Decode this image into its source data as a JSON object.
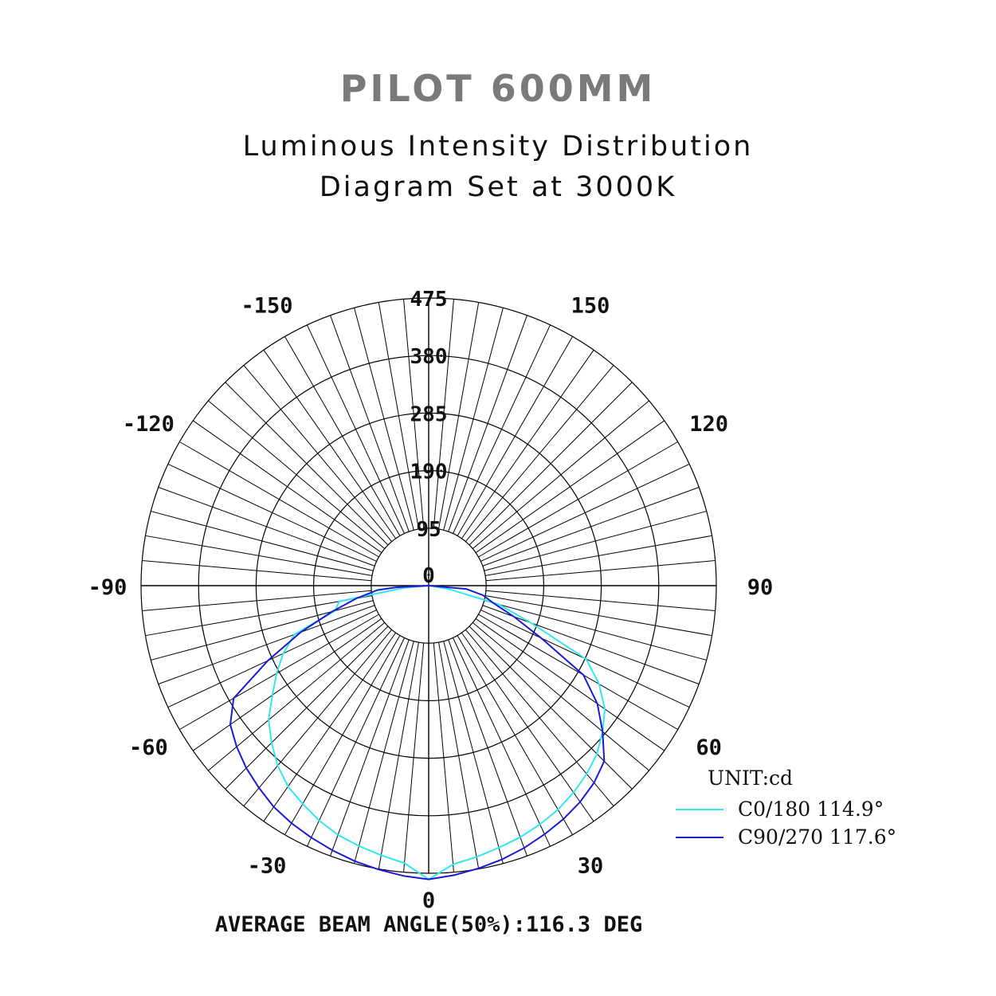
{
  "header": {
    "product_title": "PILOT 600MM",
    "subtitle_line1": "Luminous Intensity Distribution",
    "subtitle_line2": "Diagram Set at 3000K"
  },
  "chart_data": {
    "type": "polar",
    "unit_label": "UNIT:cd",
    "radial_ticks": [
      "0",
      "95",
      "190",
      "285",
      "380",
      "475"
    ],
    "radial_values": [
      0,
      95,
      190,
      285,
      380,
      475
    ],
    "r_max": 475,
    "angle_labels": [
      {
        "text": "0",
        "angle": 0
      },
      {
        "text": "30",
        "angle": 30
      },
      {
        "text": "60",
        "angle": 60
      },
      {
        "text": "90",
        "angle": 90
      },
      {
        "text": "120",
        "angle": 120
      },
      {
        "text": "150",
        "angle": 150
      },
      {
        "text": "-30",
        "angle": -30
      },
      {
        "text": "-60",
        "angle": -60
      },
      {
        "text": "-90",
        "angle": -90
      },
      {
        "text": "-120",
        "angle": -120
      },
      {
        "text": "-150",
        "angle": -150
      }
    ],
    "grid": true,
    "legend_position": "bottom-right",
    "series": [
      {
        "name": "C0/180",
        "beam_angle": "114.9°",
        "color": "#33e6ee",
        "points": [
          [
            -90,
            0
          ],
          [
            -85,
            40
          ],
          [
            -80,
            150
          ],
          [
            -75,
            160
          ],
          [
            -70,
            236
          ],
          [
            -65,
            265
          ],
          [
            -60,
            290
          ],
          [
            -55,
            315
          ],
          [
            -50,
            345
          ],
          [
            -45,
            367
          ],
          [
            -40,
            388
          ],
          [
            -35,
            405
          ],
          [
            -30,
            416
          ],
          [
            -25,
            428
          ],
          [
            -20,
            438
          ],
          [
            -15,
            445
          ],
          [
            -10,
            452
          ],
          [
            -5,
            460
          ],
          [
            0,
            485
          ],
          [
            5,
            462
          ],
          [
            10,
            455
          ],
          [
            15,
            448
          ],
          [
            20,
            442
          ],
          [
            25,
            435
          ],
          [
            30,
            427
          ],
          [
            35,
            417
          ],
          [
            40,
            406
          ],
          [
            45,
            393
          ],
          [
            50,
            375
          ],
          [
            55,
            355
          ],
          [
            60,
            325
          ],
          [
            65,
            287
          ],
          [
            70,
            180
          ],
          [
            75,
            120
          ],
          [
            80,
            35
          ],
          [
            85,
            5
          ],
          [
            90,
            0
          ]
        ]
      },
      {
        "name": "C90/270",
        "beam_angle": "117.6°",
        "color": "#1a1ad6",
        "points": [
          [
            -90,
            0
          ],
          [
            -87,
            54
          ],
          [
            -85,
            85
          ],
          [
            -80,
            121
          ],
          [
            -75,
            165
          ],
          [
            -70,
            225
          ],
          [
            -65,
            293
          ],
          [
            -60,
            372
          ],
          [
            -55,
            400
          ],
          [
            -50,
            414
          ],
          [
            -45,
            426
          ],
          [
            -40,
            436
          ],
          [
            -35,
            446
          ],
          [
            -30,
            453
          ],
          [
            -25,
            459
          ],
          [
            -20,
            465
          ],
          [
            -15,
            471
          ],
          [
            -10,
            476
          ],
          [
            -5,
            481
          ],
          [
            0,
            485
          ],
          [
            5,
            480
          ],
          [
            10,
            474
          ],
          [
            15,
            468
          ],
          [
            20,
            461
          ],
          [
            25,
            453
          ],
          [
            30,
            445
          ],
          [
            35,
            436
          ],
          [
            40,
            425
          ],
          [
            45,
            410
          ],
          [
            50,
            375
          ],
          [
            55,
            340
          ],
          [
            60,
            295
          ],
          [
            65,
            205
          ],
          [
            70,
            150
          ],
          [
            75,
            110
          ],
          [
            80,
            91
          ],
          [
            85,
            62
          ],
          [
            90,
            0
          ]
        ]
      }
    ]
  },
  "footer": {
    "average_beam_angle": "AVERAGE BEAM ANGLE(50%):116.3 DEG"
  }
}
